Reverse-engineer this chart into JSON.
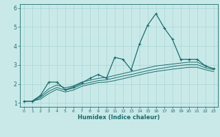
{
  "xlabel": "Humidex (Indice chaleur)",
  "background_color": "#c9e9e9",
  "grid_color": "#a8d4d4",
  "line_color": "#1a6b6b",
  "x_values": [
    0,
    1,
    2,
    3,
    4,
    5,
    6,
    7,
    8,
    9,
    10,
    11,
    12,
    13,
    14,
    15,
    16,
    17,
    18,
    19,
    20,
    21,
    22,
    23
  ],
  "series1": [
    1.1,
    1.1,
    1.4,
    2.1,
    2.1,
    1.7,
    1.85,
    2.05,
    2.3,
    2.5,
    2.3,
    3.4,
    3.3,
    2.75,
    4.1,
    5.1,
    5.7,
    4.95,
    4.35,
    3.3,
    3.3,
    3.3,
    2.95,
    2.8
  ],
  "series2": [
    1.1,
    1.1,
    1.35,
    1.75,
    1.95,
    1.8,
    1.9,
    2.1,
    2.2,
    2.3,
    2.35,
    2.45,
    2.55,
    2.65,
    2.75,
    2.85,
    2.95,
    3.0,
    3.05,
    3.1,
    3.15,
    3.15,
    2.95,
    2.8
  ],
  "series3": [
    1.1,
    1.1,
    1.28,
    1.62,
    1.82,
    1.68,
    1.78,
    1.98,
    2.08,
    2.18,
    2.22,
    2.32,
    2.42,
    2.5,
    2.6,
    2.7,
    2.78,
    2.85,
    2.92,
    2.98,
    3.02,
    3.02,
    2.85,
    2.75
  ],
  "series4": [
    1.1,
    1.1,
    1.2,
    1.5,
    1.72,
    1.58,
    1.68,
    1.88,
    1.98,
    2.08,
    2.1,
    2.18,
    2.28,
    2.38,
    2.48,
    2.58,
    2.66,
    2.72,
    2.78,
    2.83,
    2.88,
    2.88,
    2.75,
    2.65
  ],
  "ylim": [
    0.8,
    6.2
  ],
  "yticks": [
    1,
    2,
    3,
    4,
    5,
    6
  ],
  "xlim": [
    -0.5,
    23.5
  ],
  "xtick_fontsize": 4.5,
  "ytick_fontsize": 5.5,
  "xlabel_fontsize": 6.0
}
